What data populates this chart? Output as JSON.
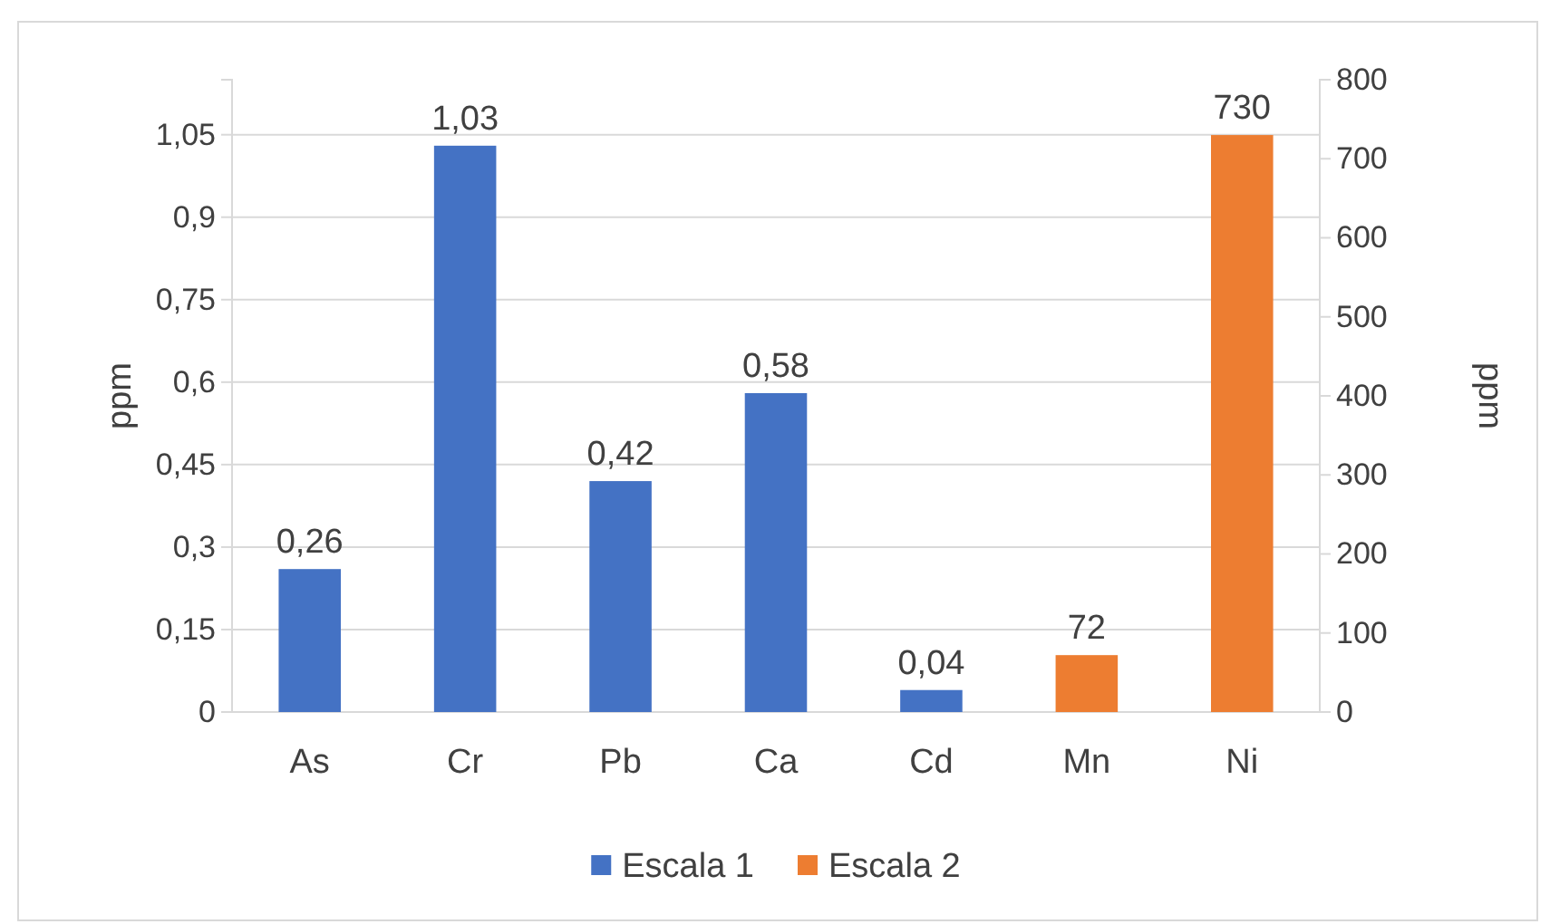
{
  "chart_data": {
    "type": "bar",
    "categories": [
      "As",
      "Cr",
      "Pb",
      "Ca",
      "Cd",
      "Mn",
      "Ni"
    ],
    "series": [
      {
        "name": "Escala 1",
        "color": "#4472c4",
        "values": [
          0.26,
          1.03,
          0.42,
          0.58,
          0.04,
          null,
          null
        ],
        "value_labels": [
          "0,26",
          "1,03",
          "0,42",
          "0,58",
          "0,04",
          null,
          null
        ]
      },
      {
        "name": "Escala 2",
        "color": "#ed7d31",
        "axis": "y2",
        "values": [
          null,
          null,
          null,
          null,
          null,
          72,
          730
        ],
        "value_labels": [
          null,
          null,
          null,
          null,
          null,
          "72",
          "730"
        ]
      }
    ],
    "ylabel": "ppm",
    "y2label": "ppm",
    "ylim": [
      0,
      1.15
    ],
    "yticks": [
      0,
      {
        "value": 0.15,
        "label": "0,15"
      },
      {
        "value": 0.3,
        "label": "0,3"
      },
      {
        "value": 0.45,
        "label": "0,45"
      },
      {
        "value": 0.6,
        "label": "0,6"
      },
      {
        "value": 0.75,
        "label": "0,75"
      },
      {
        "value": 0.9,
        "label": "0,9"
      },
      {
        "value": 1.05,
        "label": "1,05"
      }
    ],
    "y2lim": [
      0,
      800
    ],
    "y2ticks": [
      0,
      100,
      200,
      300,
      400,
      500,
      600,
      700,
      800
    ],
    "grid": "y",
    "legend": "bottom"
  }
}
